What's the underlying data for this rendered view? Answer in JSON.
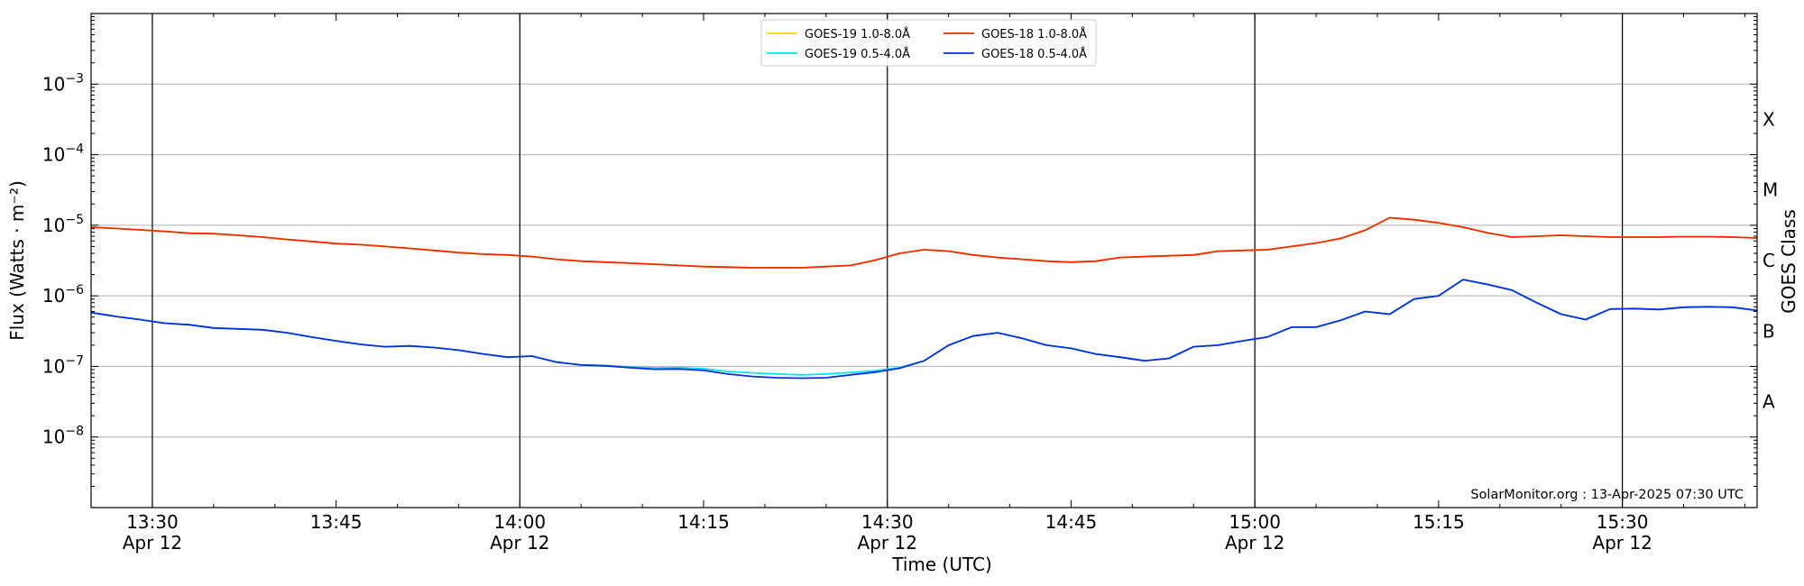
{
  "chart_data": {
    "type": "line",
    "xlabel": "Time (UTC)",
    "ylabel": "Flux (Watts · m⁻²)",
    "right_ylabel": "GOES Class",
    "y_scale": "log",
    "ylim": [
      1e-09,
      0.01
    ],
    "xlim": [
      "2025-04-12 13:25",
      "2025-04-12 15:40"
    ],
    "grid": "horizontal",
    "legend_position": "top-center",
    "credit": "SolarMonitor.org : 13-Apr-2025 07:30 UTC",
    "x_ticks": [
      {
        "time": "13:30",
        "date": "Apr 12",
        "minutes": 30
      },
      {
        "time": "13:45",
        "date": "",
        "minutes": 45
      },
      {
        "time": "14:00",
        "date": "Apr 12",
        "minutes": 60
      },
      {
        "time": "14:15",
        "date": "",
        "minutes": 75
      },
      {
        "time": "14:30",
        "date": "Apr 12",
        "minutes": 90
      },
      {
        "time": "14:45",
        "date": "",
        "minutes": 105
      },
      {
        "time": "15:00",
        "date": "Apr 12",
        "minutes": 120
      },
      {
        "time": "15:15",
        "date": "",
        "minutes": 135
      },
      {
        "time": "15:30",
        "date": "Apr 12",
        "minutes": 150
      }
    ],
    "y_ticks": [
      {
        "mantissa": "10",
        "exp": "−3",
        "value": 0.001
      },
      {
        "mantissa": "10",
        "exp": "−4",
        "value": 0.0001
      },
      {
        "mantissa": "10",
        "exp": "−5",
        "value": 1e-05
      },
      {
        "mantissa": "10",
        "exp": "−6",
        "value": 1e-06
      },
      {
        "mantissa": "10",
        "exp": "−7",
        "value": 1e-07
      },
      {
        "mantissa": "10",
        "exp": "−8",
        "value": 1e-08
      }
    ],
    "goes_classes": [
      {
        "label": "X",
        "value": 0.000316
      },
      {
        "label": "M",
        "value": 3.16e-05
      },
      {
        "label": "C",
        "value": 3.16e-06
      },
      {
        "label": "B",
        "value": 3.16e-07
      },
      {
        "label": "A",
        "value": 3.16e-08
      }
    ],
    "vertical_lines_minutes": [
      30,
      60,
      90,
      120,
      150
    ],
    "x_minutes": [
      25,
      27,
      29,
      31,
      33,
      35,
      37,
      39,
      41,
      43,
      45,
      47,
      49,
      51,
      53,
      55,
      57,
      59,
      61,
      63,
      65,
      67,
      69,
      71,
      73,
      75,
      77,
      79,
      81,
      83,
      85,
      87,
      89,
      91,
      93,
      95,
      97,
      99,
      101,
      103,
      105,
      107,
      109,
      111,
      113,
      115,
      117,
      119,
      121,
      123,
      125,
      127,
      129,
      131,
      133,
      135,
      137,
      139,
      141,
      143,
      145,
      147,
      149,
      151,
      153,
      155,
      157,
      159,
      161
    ],
    "series": [
      {
        "name": "GOES-19 1.0-8.0Å",
        "color": "#ffd700",
        "values": [
          9.4e-06,
          9e-06,
          8.6e-06,
          8.2e-06,
          7.7e-06,
          7.6e-06,
          7.2e-06,
          6.8e-06,
          6.3e-06,
          5.9e-06,
          5.5e-06,
          5.3e-06,
          5e-06,
          4.7e-06,
          4.4e-06,
          4.1e-06,
          3.9e-06,
          3.8e-06,
          3.6e-06,
          3.3e-06,
          3.1e-06,
          3e-06,
          2.9e-06,
          2.8e-06,
          2.7e-06,
          2.6e-06,
          2.55e-06,
          2.5e-06,
          2.5e-06,
          2.5e-06,
          2.6e-06,
          2.7e-06,
          3.2e-06,
          4e-06,
          4.5e-06,
          4.3e-06,
          3.8e-06,
          3.5e-06,
          3.3e-06,
          3.1e-06,
          3e-06,
          3.1e-06,
          3.5e-06,
          3.6e-06,
          3.7e-06,
          3.8e-06,
          4.3e-06,
          4.4e-06,
          4.5e-06,
          5e-06,
          5.6e-06,
          6.5e-06,
          8.5e-06,
          1.28e-05,
          1.2e-05,
          1.08e-05,
          9.4e-06,
          7.8e-06,
          6.8e-06,
          7e-06,
          7.2e-06,
          7e-06,
          6.8e-06,
          6.8e-06,
          6.8e-06,
          6.9e-06,
          6.9e-06,
          6.8e-06,
          6.6e-06
        ]
      },
      {
        "name": "GOES-19 0.5-4.0Å",
        "color": "#00e5ee",
        "values": [
          5.8e-07,
          5.1e-07,
          4.6e-07,
          4.1e-07,
          3.9e-07,
          3.5e-07,
          3.4e-07,
          3.3e-07,
          3e-07,
          2.6e-07,
          2.3e-07,
          2.05e-07,
          1.9e-07,
          1.95e-07,
          1.85e-07,
          1.7e-07,
          1.5e-07,
          1.35e-07,
          1.4e-07,
          1.15e-07,
          1.05e-07,
          1.03e-07,
          9.8e-08,
          9.5e-08,
          9.6e-08,
          9.3e-08,
          8.5e-08,
          8.1e-08,
          7.8e-08,
          7.6e-08,
          7.8e-08,
          8.2e-08,
          8.7e-08,
          9.6e-08,
          1.2e-07,
          2e-07,
          2.7e-07,
          3e-07,
          2.5e-07,
          2e-07,
          1.8e-07,
          1.5e-07,
          1.35e-07,
          1.2e-07,
          1.3e-07,
          1.9e-07,
          2e-07,
          2.3e-07,
          2.6e-07,
          3.6e-07,
          3.6e-07,
          4.5e-07,
          6e-07,
          5.5e-07,
          9e-07,
          1e-06,
          1.7e-06,
          1.45e-06,
          1.2e-06,
          8e-07,
          5.5e-07,
          4.6e-07,
          6.5e-07,
          6.6e-07,
          6.4e-07,
          6.9e-07,
          7e-07,
          6.9e-07,
          6.2e-07
        ]
      },
      {
        "name": "GOES-18 1.0-8.0Å",
        "color": "#ee2a00",
        "values": [
          9.4e-06,
          9e-06,
          8.6e-06,
          8.2e-06,
          7.7e-06,
          7.6e-06,
          7.2e-06,
          6.8e-06,
          6.3e-06,
          5.9e-06,
          5.5e-06,
          5.3e-06,
          5e-06,
          4.7e-06,
          4.4e-06,
          4.1e-06,
          3.9e-06,
          3.8e-06,
          3.6e-06,
          3.3e-06,
          3.1e-06,
          3e-06,
          2.9e-06,
          2.8e-06,
          2.7e-06,
          2.6e-06,
          2.55e-06,
          2.5e-06,
          2.5e-06,
          2.5e-06,
          2.6e-06,
          2.7e-06,
          3.2e-06,
          4e-06,
          4.5e-06,
          4.3e-06,
          3.8e-06,
          3.5e-06,
          3.3e-06,
          3.1e-06,
          3e-06,
          3.1e-06,
          3.5e-06,
          3.6e-06,
          3.7e-06,
          3.8e-06,
          4.3e-06,
          4.4e-06,
          4.5e-06,
          5e-06,
          5.6e-06,
          6.5e-06,
          8.5e-06,
          1.28e-05,
          1.2e-05,
          1.08e-05,
          9.4e-06,
          7.8e-06,
          6.8e-06,
          7e-06,
          7.2e-06,
          7e-06,
          6.8e-06,
          6.8e-06,
          6.8e-06,
          6.9e-06,
          6.9e-06,
          6.8e-06,
          6.6e-06
        ]
      },
      {
        "name": "GOES-18 0.5-4.0Å",
        "color": "#0a2fd6",
        "values": [
          5.8e-07,
          5.1e-07,
          4.6e-07,
          4.1e-07,
          3.9e-07,
          3.5e-07,
          3.4e-07,
          3.3e-07,
          3e-07,
          2.6e-07,
          2.3e-07,
          2.05e-07,
          1.9e-07,
          1.95e-07,
          1.85e-07,
          1.7e-07,
          1.5e-07,
          1.35e-07,
          1.4e-07,
          1.15e-07,
          1.05e-07,
          1.02e-07,
          9.6e-08,
          9.1e-08,
          9.2e-08,
          8.8e-08,
          7.8e-08,
          7.2e-08,
          6.9e-08,
          6.8e-08,
          6.9e-08,
          7.6e-08,
          8.3e-08,
          9.4e-08,
          1.2e-07,
          2e-07,
          2.7e-07,
          3e-07,
          2.5e-07,
          2e-07,
          1.8e-07,
          1.5e-07,
          1.35e-07,
          1.2e-07,
          1.3e-07,
          1.9e-07,
          2e-07,
          2.3e-07,
          2.6e-07,
          3.6e-07,
          3.6e-07,
          4.5e-07,
          6e-07,
          5.5e-07,
          9e-07,
          1e-06,
          1.7e-06,
          1.45e-06,
          1.2e-06,
          8e-07,
          5.5e-07,
          4.6e-07,
          6.5e-07,
          6.6e-07,
          6.4e-07,
          6.9e-07,
          7e-07,
          6.9e-07,
          6.2e-07
        ]
      }
    ],
    "legend": [
      {
        "label": "GOES-19 1.0-8.0Å",
        "color": "#ffd700"
      },
      {
        "label": "GOES-19 0.5-4.0Å",
        "color": "#00e5ee"
      },
      {
        "label": "GOES-18 1.0-8.0Å",
        "color": "#ee2a00"
      },
      {
        "label": "GOES-18 0.5-4.0Å",
        "color": "#0a2fd6"
      }
    ]
  }
}
